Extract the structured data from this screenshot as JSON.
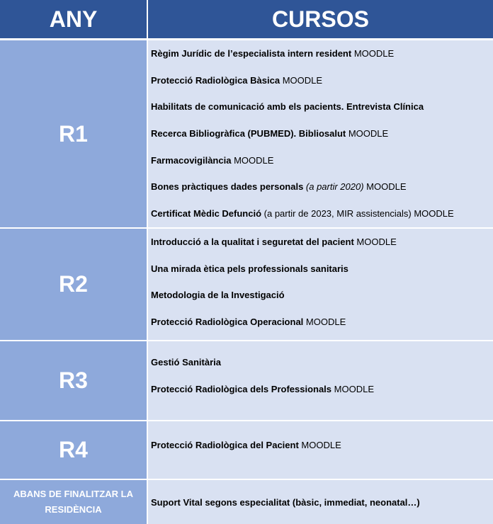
{
  "header": {
    "year": "ANY",
    "courses": "CURSOS"
  },
  "colors": {
    "header": "#2F5597",
    "year_cell": "#8EA9DB",
    "course_cell": "#D9E1F2"
  },
  "rows": [
    {
      "year": "R1",
      "courses": [
        [
          {
            "t": "Règim Jurídic de l’especialista intern resident",
            "s": "b"
          },
          {
            "t": " MOODLE",
            "s": ""
          }
        ],
        [
          {
            "t": "Protecció Radiològica Bàsica",
            "s": "b"
          },
          {
            "t": " MOODLE",
            "s": ""
          }
        ],
        [
          {
            "t": "Habilitats de comunicació amb els pacients. Entrevista Clínica",
            "s": "b"
          }
        ],
        [
          {
            "t": "Recerca Bibliogràfica (PUBMED). Bibliosalut",
            "s": "b"
          },
          {
            "t": " MOODLE",
            "s": ""
          }
        ],
        [
          {
            "t": "Farmacovigilància",
            "s": "b"
          },
          {
            "t": " MOODLE",
            "s": ""
          }
        ],
        [
          {
            "t": "Bones pràctiques dades personals",
            "s": "b"
          },
          {
            "t": " (a partir 2020)",
            "s": "i"
          },
          {
            "t": " MOODLE",
            "s": ""
          }
        ],
        [
          {
            "t": "Certificat Mèdic Defunció",
            "s": "b"
          },
          {
            "t": " (a partir de 2023, MIR assistencials) MOODLE",
            "s": ""
          }
        ]
      ]
    },
    {
      "year": "R2",
      "courses": [
        [
          {
            "t": "Introducció a la qualitat i seguretat del pacient",
            "s": "b"
          },
          {
            "t": " MOODLE",
            "s": ""
          }
        ],
        [
          {
            "t": "Una mirada ètica pels professionals sanitaris",
            "s": "b"
          }
        ],
        [
          {
            "t": "Metodologia de la Investigació",
            "s": "b"
          }
        ],
        [
          {
            "t": "Protecció Radiològica Operacional",
            "s": "b"
          },
          {
            "t": " MOODLE",
            "s": ""
          }
        ]
      ]
    },
    {
      "year": "R3",
      "courses": [
        [
          {
            "t": "Gestió Sanitària",
            "s": "b"
          }
        ],
        [
          {
            "t": "Protecció Radiològica dels Professionals",
            "s": "b"
          },
          {
            "t": " MOODLE",
            "s": ""
          }
        ]
      ]
    },
    {
      "year": "R4",
      "courses": [
        [
          {
            "t": "Protecció Radiològica del Pacient",
            "s": "b"
          },
          {
            "t": " MOODLE",
            "s": ""
          }
        ]
      ]
    },
    {
      "year": "ABANS DE FINALITZAR LA RESIDÈNCIA",
      "courses": [
        [
          {
            "t": "Suport Vital segons especialitat (bàsic, immediat, neonatal…)",
            "s": "b"
          }
        ]
      ]
    }
  ]
}
